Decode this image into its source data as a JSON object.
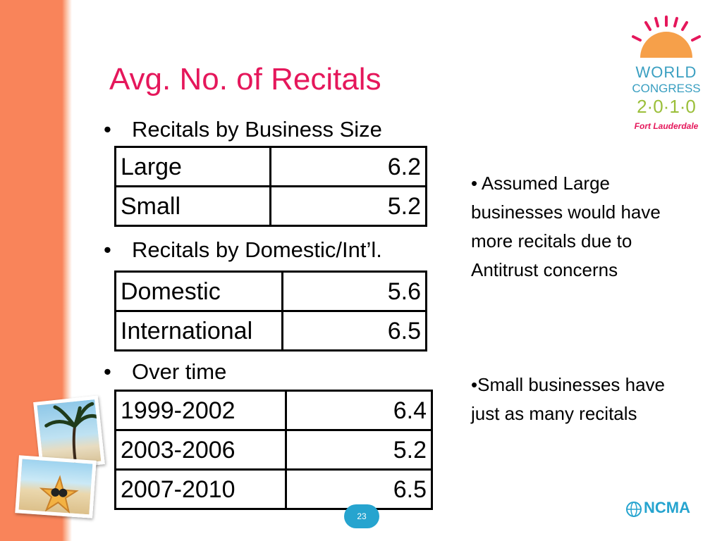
{
  "slide": {
    "title": "Avg. No. of Recitals",
    "page_number": "23"
  },
  "sections": [
    {
      "bullet": "•",
      "heading": "Recitals by Business Size",
      "rows": [
        {
          "label": "Large",
          "value": "6.2"
        },
        {
          "label": "Small",
          "value": "5.2"
        }
      ]
    },
    {
      "bullet": "•",
      "heading": "Recitals by Domestic/Int’l.",
      "rows": [
        {
          "label": "Domestic",
          "value": "5.6"
        },
        {
          "label": "International",
          "value": "6.5"
        }
      ]
    },
    {
      "bullet": "•",
      "heading": "Over time",
      "rows": [
        {
          "label": "1999-2002",
          "value": "6.4"
        },
        {
          "label": "2003-2006",
          "value": "5.2"
        },
        {
          "label": "2007-2010",
          "value": "6.5"
        }
      ]
    }
  ],
  "notes": [
    "• Assumed Large businesses would have more recitals due to Antitrust concerns",
    "•Small businesses have just as many recitals"
  ],
  "logo": {
    "line1": "WORLD",
    "line2": "CONGRESS",
    "line3": "2·0·1·0",
    "line4": "Fort Lauderdale"
  },
  "footer_logo": {
    "text": "NCMA"
  },
  "colors": {
    "title": "#e5175b",
    "stripe": "#f9845a",
    "accent": "#26a4cf",
    "logo_blue": "#3a9fc1",
    "sun": "#f6a04a"
  }
}
